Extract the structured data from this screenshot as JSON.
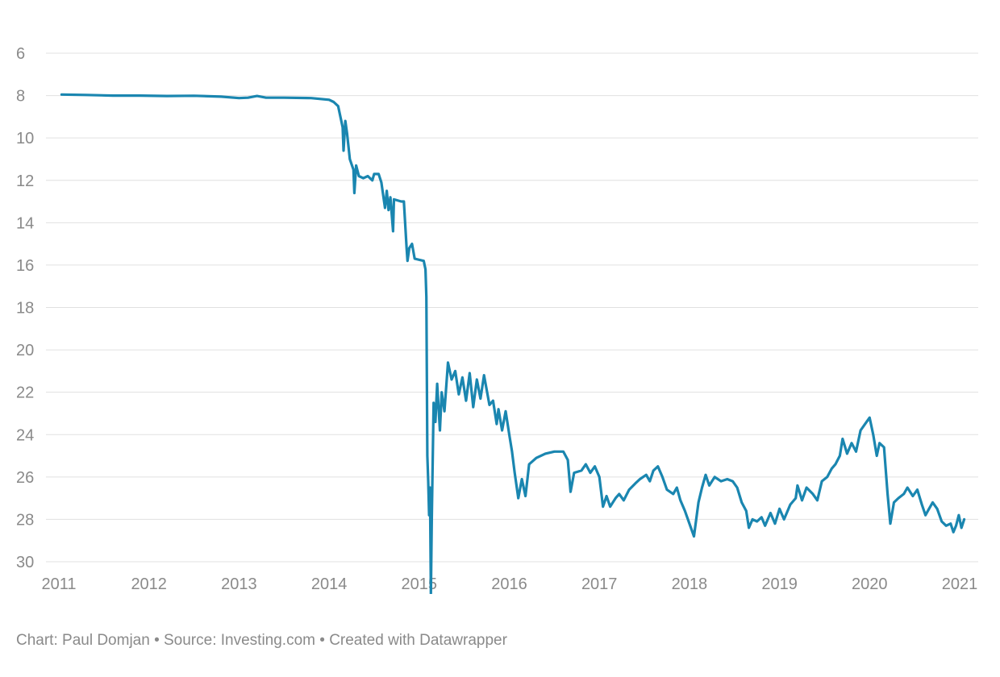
{
  "chart_data": {
    "type": "line",
    "title": "",
    "xlabel": "",
    "ylabel": "",
    "x_axis": {
      "type": "time",
      "range": [
        2011,
        2021
      ],
      "ticks": [
        "2011",
        "2012",
        "2013",
        "2014",
        "2015",
        "2016",
        "2017",
        "2018",
        "2019",
        "2020",
        "2021"
      ]
    },
    "y_axis": {
      "range": [
        6,
        30
      ],
      "reversed": true,
      "ticks": [
        "6",
        "8",
        "10",
        "12",
        "14",
        "16",
        "18",
        "20",
        "22",
        "24",
        "26",
        "28",
        "30"
      ]
    },
    "grid": "horizontal",
    "line_color": "#1a86b0",
    "series": [
      {
        "points": [
          [
            2011.03,
            7.95
          ],
          [
            2011.3,
            7.97
          ],
          [
            2011.6,
            8.0
          ],
          [
            2011.9,
            8.0
          ],
          [
            2012.2,
            8.02
          ],
          [
            2012.5,
            8.01
          ],
          [
            2012.8,
            8.05
          ],
          [
            2013.0,
            8.12
          ],
          [
            2013.1,
            8.1
          ],
          [
            2013.2,
            8.02
          ],
          [
            2013.3,
            8.1
          ],
          [
            2013.5,
            8.1
          ],
          [
            2013.8,
            8.12
          ],
          [
            2014.0,
            8.2
          ],
          [
            2014.05,
            8.3
          ],
          [
            2014.1,
            8.5
          ],
          [
            2014.15,
            9.5
          ],
          [
            2014.16,
            10.6
          ],
          [
            2014.18,
            9.2
          ],
          [
            2014.2,
            9.8
          ],
          [
            2014.23,
            11.0
          ],
          [
            2014.27,
            11.5
          ],
          [
            2014.28,
            12.6
          ],
          [
            2014.3,
            11.3
          ],
          [
            2014.33,
            11.8
          ],
          [
            2014.38,
            11.9
          ],
          [
            2014.43,
            11.8
          ],
          [
            2014.48,
            12.0
          ],
          [
            2014.5,
            11.7
          ],
          [
            2014.55,
            11.7
          ],
          [
            2014.58,
            12.1
          ],
          [
            2014.62,
            13.3
          ],
          [
            2014.64,
            12.5
          ],
          [
            2014.66,
            13.4
          ],
          [
            2014.68,
            12.8
          ],
          [
            2014.71,
            14.4
          ],
          [
            2014.72,
            12.9
          ],
          [
            2014.8,
            13.0
          ],
          [
            2014.83,
            13.0
          ],
          [
            2014.86,
            15.2
          ],
          [
            2014.87,
            15.8
          ],
          [
            2014.89,
            15.2
          ],
          [
            2014.92,
            15.0
          ],
          [
            2014.95,
            15.7
          ],
          [
            2015.05,
            15.8
          ],
          [
            2015.07,
            16.2
          ],
          [
            2015.08,
            17.5
          ],
          [
            2015.09,
            25.0
          ],
          [
            2015.1,
            26.2
          ],
          [
            2015.11,
            27.8
          ],
          [
            2015.12,
            26.5
          ],
          [
            2015.13,
            31.5
          ],
          [
            2015.14,
            28.0
          ],
          [
            2015.16,
            22.5
          ],
          [
            2015.18,
            23.4
          ],
          [
            2015.2,
            21.6
          ],
          [
            2015.23,
            23.8
          ],
          [
            2015.25,
            22.0
          ],
          [
            2015.28,
            22.9
          ],
          [
            2015.32,
            20.6
          ],
          [
            2015.36,
            21.4
          ],
          [
            2015.4,
            21.0
          ],
          [
            2015.44,
            22.1
          ],
          [
            2015.48,
            21.3
          ],
          [
            2015.52,
            22.4
          ],
          [
            2015.56,
            21.1
          ],
          [
            2015.6,
            22.7
          ],
          [
            2015.64,
            21.4
          ],
          [
            2015.68,
            22.3
          ],
          [
            2015.72,
            21.2
          ],
          [
            2015.78,
            22.6
          ],
          [
            2015.82,
            22.4
          ],
          [
            2015.86,
            23.5
          ],
          [
            2015.88,
            22.8
          ],
          [
            2015.92,
            23.8
          ],
          [
            2015.96,
            22.9
          ],
          [
            2016.0,
            24.0
          ],
          [
            2016.03,
            24.8
          ],
          [
            2016.06,
            25.8
          ],
          [
            2016.1,
            27.0
          ],
          [
            2016.14,
            26.1
          ],
          [
            2016.18,
            26.9
          ],
          [
            2016.22,
            25.4
          ],
          [
            2016.3,
            25.1
          ],
          [
            2016.4,
            24.9
          ],
          [
            2016.5,
            24.8
          ],
          [
            2016.6,
            24.8
          ],
          [
            2016.65,
            25.2
          ],
          [
            2016.68,
            26.7
          ],
          [
            2016.72,
            25.8
          ],
          [
            2016.8,
            25.7
          ],
          [
            2016.85,
            25.4
          ],
          [
            2016.9,
            25.8
          ],
          [
            2016.95,
            25.5
          ],
          [
            2017.0,
            26.0
          ],
          [
            2017.04,
            27.4
          ],
          [
            2017.08,
            26.9
          ],
          [
            2017.12,
            27.4
          ],
          [
            2017.18,
            27.0
          ],
          [
            2017.22,
            26.8
          ],
          [
            2017.27,
            27.1
          ],
          [
            2017.33,
            26.6
          ],
          [
            2017.4,
            26.3
          ],
          [
            2017.45,
            26.1
          ],
          [
            2017.52,
            25.9
          ],
          [
            2017.56,
            26.2
          ],
          [
            2017.6,
            25.7
          ],
          [
            2017.65,
            25.5
          ],
          [
            2017.7,
            26.0
          ],
          [
            2017.75,
            26.6
          ],
          [
            2017.82,
            26.8
          ],
          [
            2017.86,
            26.5
          ],
          [
            2017.9,
            27.1
          ],
          [
            2017.95,
            27.6
          ],
          [
            2018.0,
            28.2
          ],
          [
            2018.05,
            28.8
          ],
          [
            2018.1,
            27.2
          ],
          [
            2018.14,
            26.5
          ],
          [
            2018.18,
            25.9
          ],
          [
            2018.22,
            26.4
          ],
          [
            2018.28,
            26.0
          ],
          [
            2018.35,
            26.2
          ],
          [
            2018.42,
            26.1
          ],
          [
            2018.48,
            26.2
          ],
          [
            2018.53,
            26.5
          ],
          [
            2018.58,
            27.2
          ],
          [
            2018.63,
            27.6
          ],
          [
            2018.66,
            28.4
          ],
          [
            2018.7,
            28.0
          ],
          [
            2018.75,
            28.1
          ],
          [
            2018.8,
            27.9
          ],
          [
            2018.84,
            28.3
          ],
          [
            2018.9,
            27.7
          ],
          [
            2018.95,
            28.2
          ],
          [
            2019.0,
            27.5
          ],
          [
            2019.05,
            28.0
          ],
          [
            2019.12,
            27.3
          ],
          [
            2019.18,
            27.0
          ],
          [
            2019.2,
            26.4
          ],
          [
            2019.25,
            27.1
          ],
          [
            2019.3,
            26.5
          ],
          [
            2019.37,
            26.8
          ],
          [
            2019.42,
            27.1
          ],
          [
            2019.47,
            26.2
          ],
          [
            2019.53,
            26.0
          ],
          [
            2019.58,
            25.6
          ],
          [
            2019.62,
            25.4
          ],
          [
            2019.67,
            25.0
          ],
          [
            2019.7,
            24.2
          ],
          [
            2019.75,
            24.9
          ],
          [
            2019.8,
            24.4
          ],
          [
            2019.85,
            24.8
          ],
          [
            2019.9,
            23.8
          ],
          [
            2019.95,
            23.5
          ],
          [
            2020.0,
            23.2
          ],
          [
            2020.04,
            24.0
          ],
          [
            2020.08,
            25.0
          ],
          [
            2020.11,
            24.4
          ],
          [
            2020.16,
            24.6
          ],
          [
            2020.2,
            26.8
          ],
          [
            2020.23,
            28.2
          ],
          [
            2020.27,
            27.2
          ],
          [
            2020.32,
            27.0
          ],
          [
            2020.38,
            26.8
          ],
          [
            2020.42,
            26.5
          ],
          [
            2020.48,
            26.9
          ],
          [
            2020.53,
            26.6
          ],
          [
            2020.58,
            27.3
          ],
          [
            2020.62,
            27.8
          ],
          [
            2020.66,
            27.5
          ],
          [
            2020.7,
            27.2
          ],
          [
            2020.75,
            27.5
          ],
          [
            2020.8,
            28.1
          ],
          [
            2020.85,
            28.3
          ],
          [
            2020.9,
            28.2
          ],
          [
            2020.93,
            28.6
          ],
          [
            2020.96,
            28.3
          ],
          [
            2020.99,
            27.8
          ],
          [
            2021.02,
            28.4
          ],
          [
            2021.05,
            28.0
          ]
        ]
      }
    ]
  },
  "footer": {
    "credit": "Chart: Paul Domjan • Source: Investing.com • Created with Datawrapper"
  }
}
